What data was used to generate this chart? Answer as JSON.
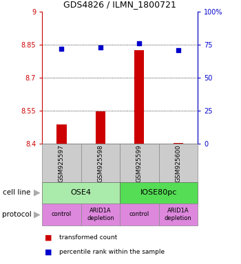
{
  "title": "GDS4826 / ILMN_1800721",
  "samples": [
    "GSM925597",
    "GSM925598",
    "GSM925599",
    "GSM925600"
  ],
  "bar_values": [
    8.487,
    8.547,
    8.825,
    8.403
  ],
  "bar_base": 8.4,
  "percentile_values": [
    72,
    73,
    76,
    71
  ],
  "ylim_left": [
    8.4,
    9.0
  ],
  "ylim_right": [
    0,
    100
  ],
  "yticks_left": [
    8.4,
    8.55,
    8.7,
    8.85,
    9.0
  ],
  "yticks_right": [
    0,
    25,
    50,
    75,
    100
  ],
  "ytick_labels_left": [
    "8.4",
    "8.55",
    "8.7",
    "8.85",
    "9"
  ],
  "ytick_labels_right": [
    "0",
    "25",
    "50",
    "75",
    "100%"
  ],
  "bar_color": "#cc0000",
  "dot_color": "#0000cc",
  "cell_line_labels": [
    "OSE4",
    "IOSE80pc"
  ],
  "cell_line_colors": [
    "#aaeaaa",
    "#55dd55"
  ],
  "cell_line_spans": [
    [
      0.5,
      2.5
    ],
    [
      2.5,
      4.5
    ]
  ],
  "protocol_labels": [
    "control",
    "ARID1A\ndepletion",
    "control",
    "ARID1A\ndepletion"
  ],
  "protocol_color": "#dd88dd",
  "protocol_spans": [
    [
      0.5,
      1.5
    ],
    [
      1.5,
      2.5
    ],
    [
      2.5,
      3.5
    ],
    [
      3.5,
      4.5
    ]
  ],
  "sample_label_bg": "#cccccc",
  "grid_color": "#000000",
  "legend_bar_label": "transformed count",
  "legend_dot_label": "percentile rank within the sample",
  "cell_line_row_label": "cell line",
  "protocol_row_label": "protocol",
  "left_label_color": "#cc0000",
  "right_label_color": "#0000cc",
  "xlim": [
    0.5,
    4.5
  ],
  "x_positions": [
    1,
    2,
    3,
    4
  ]
}
